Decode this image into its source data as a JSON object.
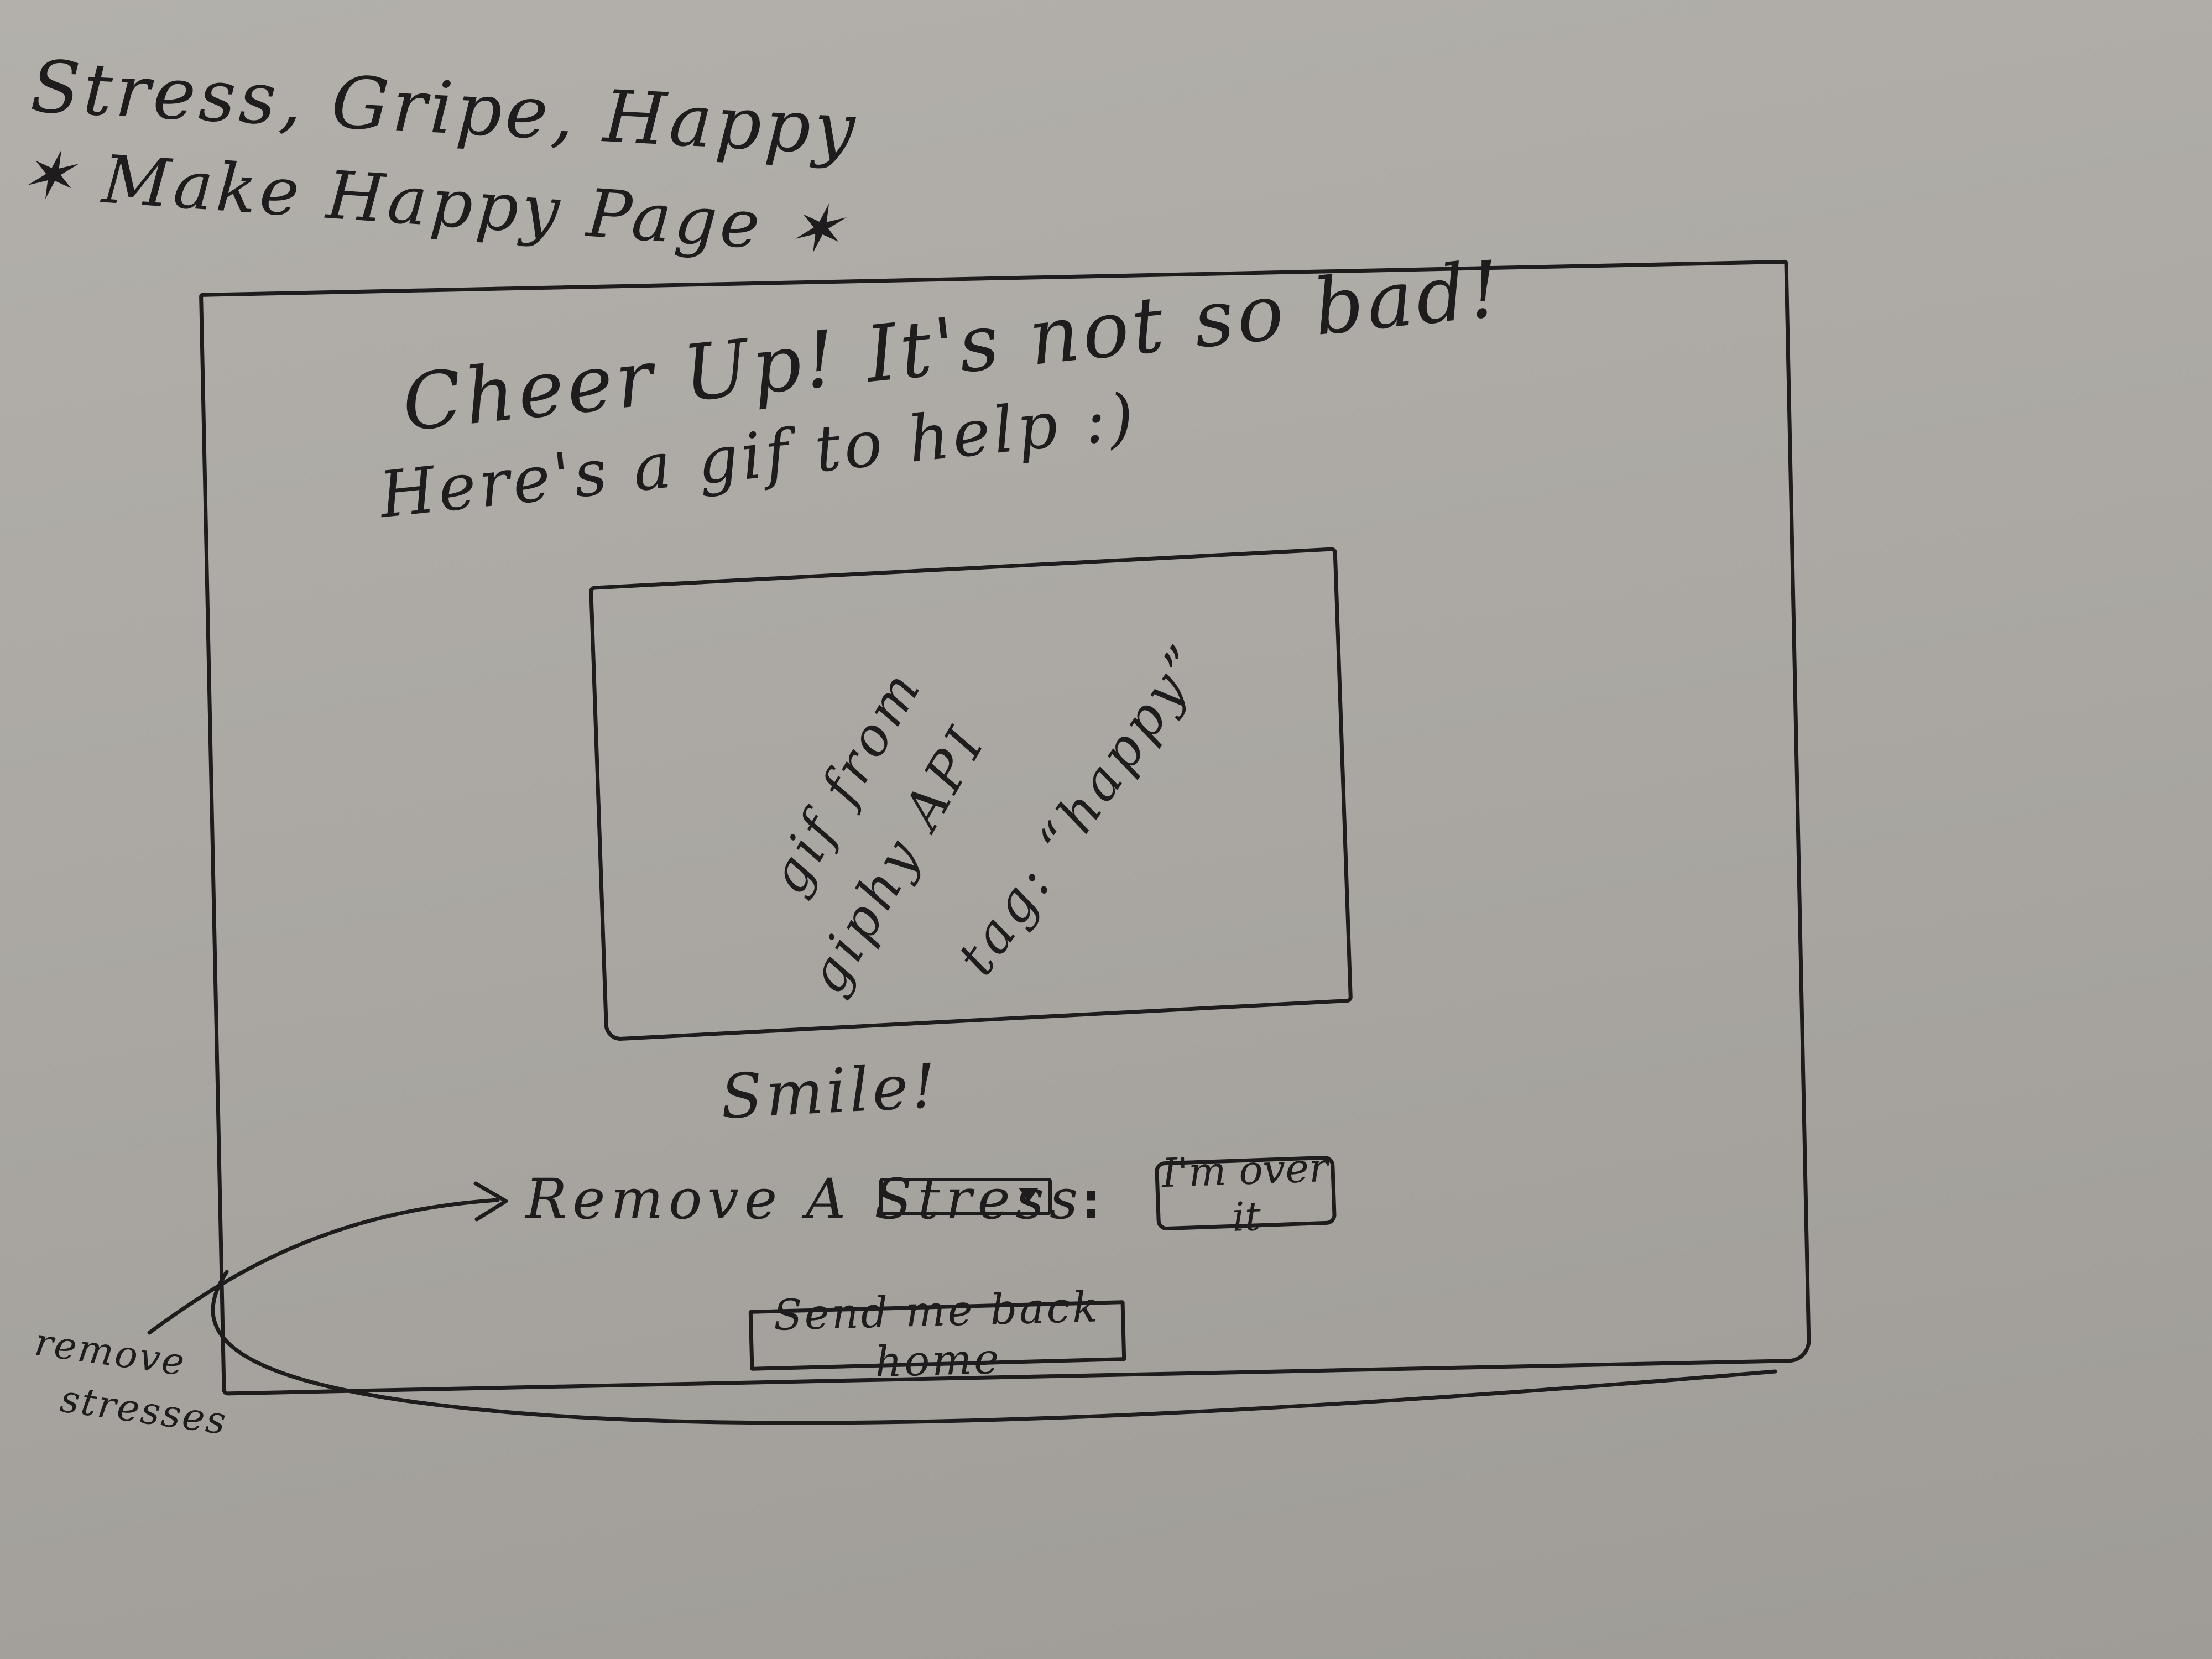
{
  "notes": {
    "pages_list": "Stress, Gripe, Happy",
    "page_task": "✶ Make Happy Page ✶"
  },
  "happy_page": {
    "heading": "Cheer Up! It's not so bad!",
    "subheading": "Here's a gif to help :)",
    "gif_placeholder": {
      "line_1": "gif from",
      "line_2": "giphy API",
      "line_3": "tag: “happy”"
    },
    "caption": "Smile!",
    "remove_stress": {
      "label": "Remove A Stress",
      "separator": ":",
      "button_label": "I'm over it"
    },
    "home_button_label": "Send me back home"
  },
  "annotation": {
    "line_1": "remove",
    "line_2": "stresses"
  },
  "colors": {
    "paper": "#ada9a4",
    "ink": "#1e1c1c"
  }
}
